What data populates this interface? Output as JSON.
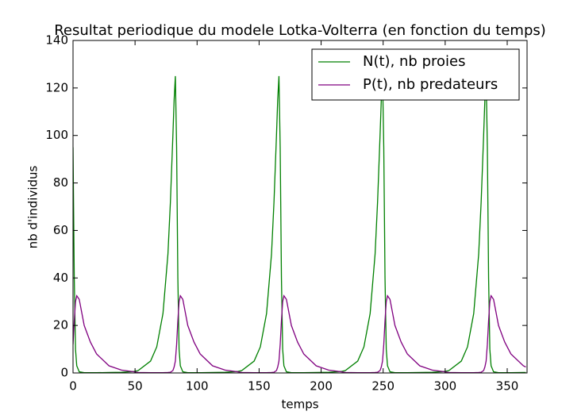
{
  "chart_data": {
    "type": "line",
    "title": "Resultat periodique du modele Lotka-Volterra (en fonction du temps)",
    "x_label": "temps",
    "y_label": "nb d'individus",
    "x": [
      0,
      1,
      2,
      3,
      5,
      9,
      14,
      19,
      29,
      39,
      49,
      52.5,
      62.5,
      67.5,
      72.5,
      76.5,
      78.5,
      80.5,
      81.5,
      82.5,
      83.5,
      84.5,
      85.5,
      86.5,
      88.5,
      92.5,
      97.5,
      102.5,
      112.5,
      122.5,
      132.5,
      136,
      146,
      151,
      156,
      160,
      162,
      164,
      165,
      166,
      167,
      168,
      169,
      170,
      172,
      176,
      181,
      186,
      196,
      206,
      216,
      219.5,
      229.5,
      234.5,
      239.5,
      243.5,
      245.5,
      247.5,
      248.5,
      249.5,
      250.5,
      251.5,
      252.5,
      253.5,
      255.5,
      259.5,
      264.5,
      269.5,
      279.5,
      289.5,
      299.5,
      303,
      313,
      318,
      323,
      327,
      329,
      331,
      332,
      333,
      334,
      335,
      336,
      337,
      339,
      343,
      348,
      353,
      363,
      365
    ],
    "series": [
      {
        "name": "N(t), nb proies",
        "color": "#008000",
        "values": [
          95,
          40,
          10,
          3,
          0.5,
          0.1,
          0.1,
          0.1,
          0.2,
          0.3,
          0.6,
          1,
          5,
          11,
          25,
          50,
          72,
          100,
          115,
          125,
          95,
          40,
          10,
          3,
          0.5,
          0.1,
          0.1,
          0.1,
          0.2,
          0.3,
          0.6,
          1,
          5,
          11,
          25,
          50,
          72,
          100,
          115,
          125,
          95,
          40,
          10,
          3,
          0.5,
          0.1,
          0.1,
          0.1,
          0.2,
          0.3,
          0.6,
          1,
          5,
          11,
          25,
          50,
          72,
          100,
          115,
          125,
          95,
          40,
          10,
          3,
          0.5,
          0.1,
          0.1,
          0.1,
          0.2,
          0.3,
          0.6,
          1,
          5,
          11,
          25,
          50,
          72,
          100,
          115,
          125,
          95,
          40,
          10,
          3,
          0.5,
          0.1,
          0.1,
          0.1,
          0.2,
          0.2
        ]
      },
      {
        "name": "P(t), nb predateurs",
        "color": "#800080",
        "values": [
          12,
          22,
          30,
          32.5,
          31,
          20,
          13,
          8,
          3,
          1.2,
          0.5,
          0.2,
          0.1,
          0.1,
          0.1,
          0.2,
          0.3,
          1,
          2.5,
          5,
          12,
          22,
          30,
          32.5,
          31,
          20,
          13,
          8,
          3,
          1.2,
          0.5,
          0.2,
          0.1,
          0.1,
          0.1,
          0.2,
          0.3,
          1,
          2.5,
          5,
          12,
          22,
          30,
          32.5,
          31,
          20,
          13,
          8,
          3,
          1.2,
          0.5,
          0.2,
          0.1,
          0.1,
          0.1,
          0.2,
          0.3,
          1,
          2.5,
          5,
          12,
          22,
          30,
          32.5,
          31,
          20,
          13,
          8,
          3,
          1.2,
          0.5,
          0.2,
          0.1,
          0.1,
          0.1,
          0.2,
          0.3,
          1,
          2.5,
          5,
          12,
          22,
          30,
          32.5,
          31,
          20,
          13,
          8,
          3,
          2.5
        ]
      }
    ],
    "xlim": [
      0,
      366
    ],
    "ylim": [
      0,
      140
    ],
    "xticks": [
      0,
      50,
      100,
      150,
      200,
      250,
      300,
      350
    ],
    "yticks": [
      0,
      20,
      40,
      60,
      80,
      100,
      120,
      140
    ],
    "legend": "upper right"
  }
}
